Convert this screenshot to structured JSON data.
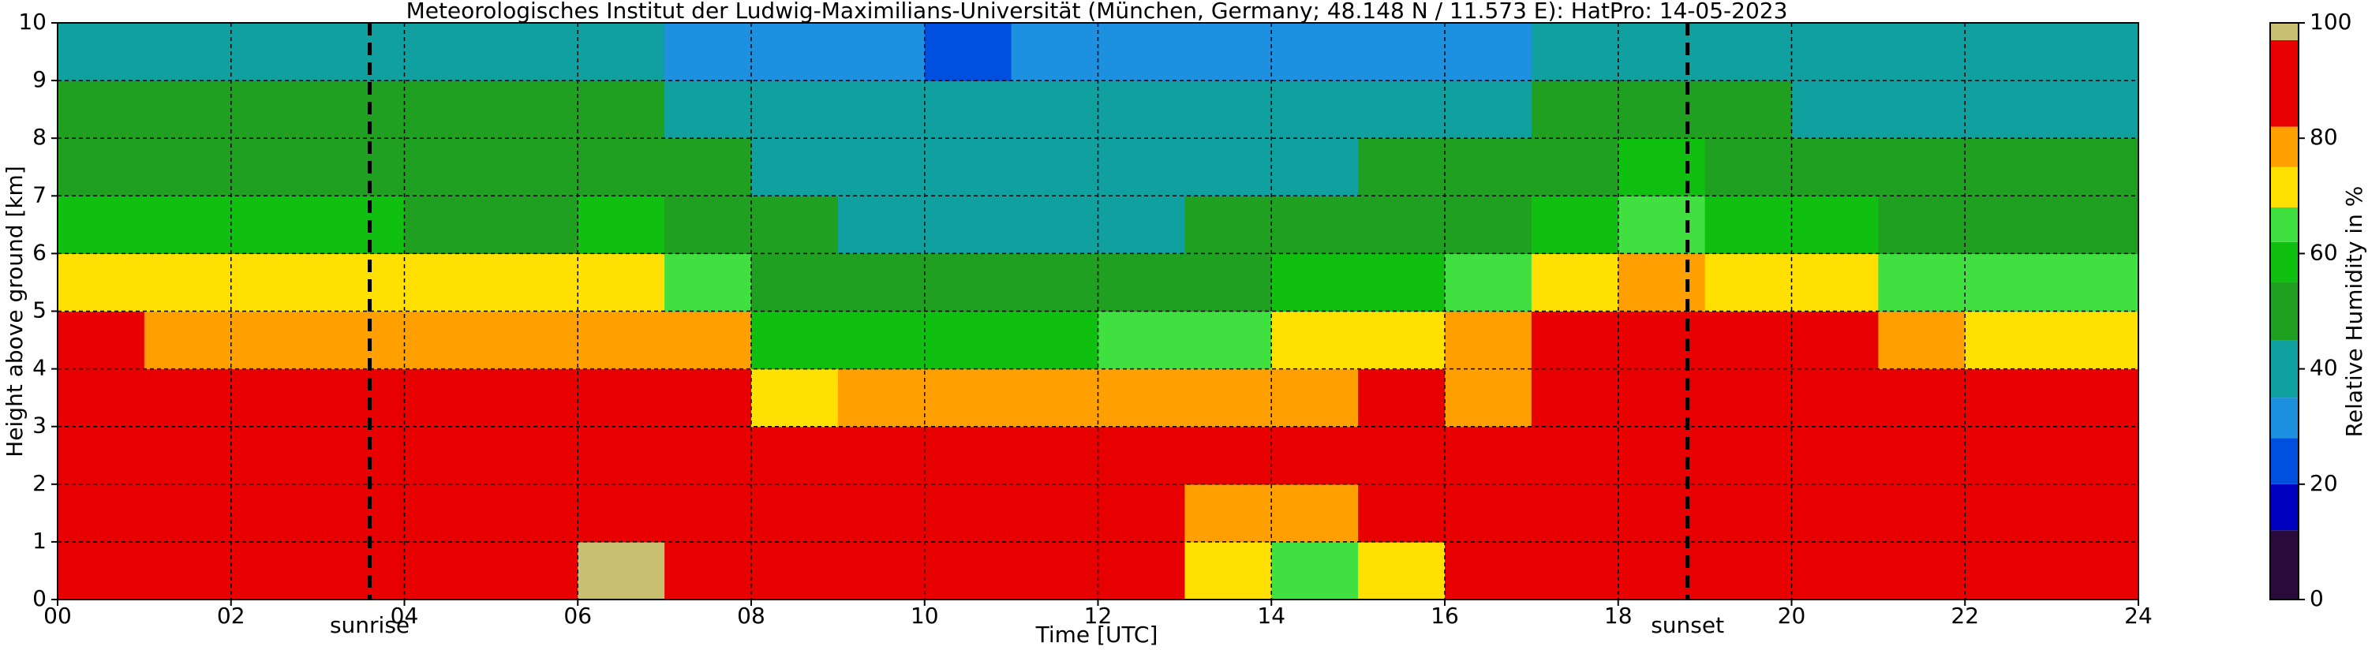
{
  "chart_data": {
    "type": "heatmap",
    "title": "Meteorologisches Institut der Ludwig-Maximilians-Universität (München, Germany; 48.148 N / 11.573 E):    HatPro: 14-05-2023",
    "x_label": "Time [UTC]",
    "y_label": "Height above ground [km]",
    "xlim": [
      0,
      24
    ],
    "ylim": [
      0,
      10
    ],
    "xticks": [
      {
        "value": 0,
        "label": "00"
      },
      {
        "value": 2,
        "label": "02"
      },
      {
        "value": 4,
        "label": "04"
      },
      {
        "value": 6,
        "label": "06"
      },
      {
        "value": 8,
        "label": "08"
      },
      10,
      12,
      14,
      16,
      18,
      20,
      22,
      24
    ],
    "yticks": [
      0,
      1,
      2,
      3,
      4,
      5,
      6,
      7,
      8,
      9,
      10
    ],
    "grid": true,
    "annotations": [
      {
        "label": "sunrise",
        "x": 3.6
      },
      {
        "label": "sunset",
        "x": 18.8
      }
    ],
    "colorbar": {
      "label": "Relative Humidity in %",
      "ticks": [
        0,
        20,
        40,
        60,
        80,
        100
      ],
      "bounds": [
        0,
        12,
        20,
        28,
        35,
        45,
        55,
        62,
        68,
        75,
        82,
        97,
        100
      ],
      "colors": [
        "#2a0a3a",
        "#0000c0",
        "#0050e0",
        "#1e90e0",
        "#10a0a0",
        "#20a020",
        "#10c010",
        "#40e040",
        "#ffe000",
        "#ffa000",
        "#e80000",
        "#c8c070"
      ]
    },
    "z": [
      [
        95,
        95,
        92,
        88,
        82,
        72,
        60,
        50,
        45,
        35
      ],
      [
        95,
        95,
        92,
        87,
        80,
        72,
        58,
        48,
        45,
        35
      ],
      [
        96,
        95,
        93,
        88,
        80,
        72,
        55,
        48,
        45,
        35
      ],
      [
        96,
        95,
        93,
        87,
        80,
        70,
        55,
        48,
        45,
        35
      ],
      [
        96,
        95,
        92,
        86,
        78,
        68,
        52,
        48,
        45,
        35
      ],
      [
        96,
        95,
        92,
        86,
        78,
        68,
        52,
        48,
        45,
        35
      ],
      [
        97,
        96,
        93,
        88,
        80,
        72,
        58,
        52,
        45,
        35
      ],
      [
        96,
        95,
        90,
        82,
        75,
        65,
        52,
        48,
        42,
        32
      ],
      [
        95,
        92,
        88,
        72,
        58,
        50,
        45,
        42,
        38,
        32
      ],
      [
        94,
        92,
        88,
        75,
        60,
        50,
        42,
        38,
        36,
        30
      ],
      [
        94,
        92,
        86,
        76,
        55,
        45,
        38,
        36,
        36,
        25
      ],
      [
        94,
        92,
        86,
        76,
        58,
        48,
        40,
        36,
        36,
        28
      ],
      [
        88,
        90,
        88,
        76,
        62,
        50,
        44,
        40,
        38,
        30
      ],
      [
        70,
        80,
        85,
        78,
        65,
        52,
        45,
        42,
        38,
        32
      ],
      [
        62,
        78,
        86,
        80,
        68,
        55,
        48,
        42,
        38,
        32
      ],
      [
        72,
        85,
        88,
        82,
        72,
        60,
        50,
        45,
        40,
        32
      ],
      [
        92,
        88,
        85,
        80,
        75,
        62,
        52,
        45,
        40,
        32
      ],
      [
        95,
        93,
        88,
        85,
        82,
        72,
        60,
        52,
        45,
        35
      ],
      [
        96,
        95,
        92,
        90,
        88,
        80,
        65,
        55,
        45,
        35
      ],
      [
        96,
        95,
        92,
        90,
        85,
        72,
        60,
        50,
        45,
        35
      ],
      [
        96,
        95,
        92,
        88,
        82,
        70,
        55,
        48,
        42,
        35
      ],
      [
        96,
        95,
        92,
        86,
        78,
        66,
        50,
        46,
        42,
        35
      ],
      [
        95,
        95,
        90,
        82,
        72,
        62,
        50,
        46,
        42,
        35
      ],
      [
        95,
        94,
        90,
        82,
        72,
        62,
        52,
        46,
        42,
        35
      ]
    ]
  }
}
